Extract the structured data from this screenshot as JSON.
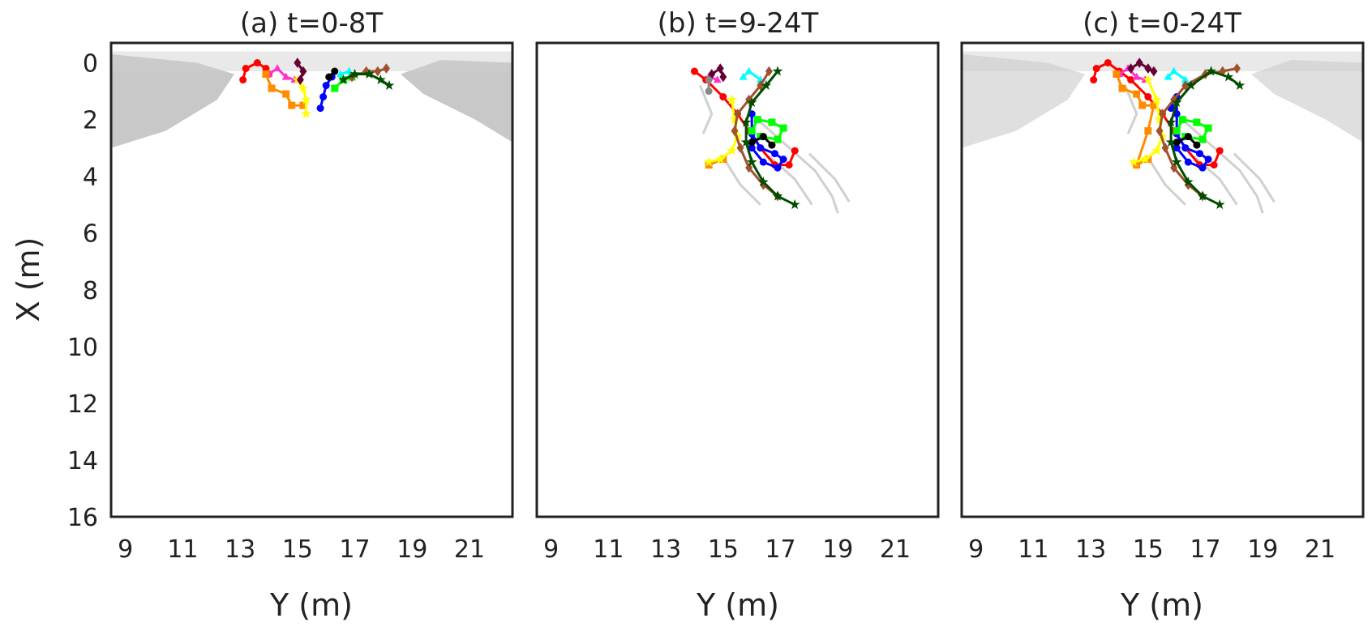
{
  "chart_data": [
    {
      "type": "scatter",
      "title": "(a) t=0-8T",
      "xlabel": "Y (m)",
      "ylabel": "X (m)",
      "xlim": [
        8.5,
        22.5
      ],
      "ylim": [
        16,
        -0.7
      ],
      "y_inverted": true,
      "xticks": [
        "9",
        "11",
        "13",
        "15",
        "17",
        "19",
        "21"
      ],
      "yticks": [
        "0",
        "2",
        "4",
        "6",
        "8",
        "10",
        "12",
        "14",
        "16"
      ],
      "background": "grey density of all trajectories, concentrated near X 0-3 at Y 8.5-12 and Y 19-22.5",
      "series": [
        {
          "color": "#ff0000",
          "marker": "circle",
          "points": [
            [
              13.1,
              0.6
            ],
            [
              13.2,
              0.2
            ],
            [
              13.6,
              0.0
            ],
            [
              13.9,
              0.2
            ],
            [
              14.0,
              0.4
            ]
          ]
        },
        {
          "color": "#ff33cc",
          "marker": "triangle",
          "points": [
            [
              14.0,
              0.4
            ],
            [
              14.3,
              0.2
            ],
            [
              14.6,
              0.5
            ],
            [
              14.9,
              0.6
            ]
          ]
        },
        {
          "color": "#ff8c00",
          "marker": "square",
          "points": [
            [
              13.9,
              0.4
            ],
            [
              14.1,
              0.9
            ],
            [
              14.6,
              1.1
            ],
            [
              14.8,
              1.5
            ],
            [
              15.2,
              1.5
            ]
          ]
        },
        {
          "color": "#ffff00",
          "marker": "star",
          "points": [
            [
              15.0,
              0.6
            ],
            [
              15.2,
              0.9
            ],
            [
              15.3,
              1.3
            ],
            [
              15.3,
              1.8
            ]
          ]
        },
        {
          "color": "#660033",
          "marker": "diamond",
          "points": [
            [
              15.0,
              0.0
            ],
            [
              15.2,
              0.3
            ],
            [
              15.1,
              0.6
            ]
          ]
        },
        {
          "color": "#0000ff",
          "marker": "circle",
          "points": [
            [
              15.8,
              1.6
            ],
            [
              15.9,
              1.2
            ],
            [
              16.0,
              0.8
            ],
            [
              16.2,
              0.5
            ]
          ]
        },
        {
          "color": "#00ff00",
          "marker": "square",
          "points": [
            [
              16.3,
              0.9
            ],
            [
              16.6,
              0.6
            ],
            [
              16.9,
              0.5
            ]
          ]
        },
        {
          "color": "#00ffff",
          "marker": "triangle",
          "points": [
            [
              16.5,
              0.4
            ],
            [
              16.8,
              0.3
            ]
          ]
        },
        {
          "color": "#000000",
          "marker": "circle",
          "points": [
            [
              16.1,
              0.5
            ],
            [
              16.3,
              0.3
            ]
          ]
        },
        {
          "color": "#a0522d",
          "marker": "diamond",
          "points": [
            [
              16.9,
              0.5
            ],
            [
              17.4,
              0.3
            ],
            [
              17.8,
              0.3
            ],
            [
              18.1,
              0.2
            ]
          ]
        },
        {
          "color": "#004d00",
          "marker": "star",
          "points": [
            [
              16.6,
              0.6
            ],
            [
              17.0,
              0.4
            ],
            [
              17.5,
              0.4
            ],
            [
              17.9,
              0.6
            ],
            [
              18.2,
              0.8
            ]
          ]
        }
      ]
    },
    {
      "type": "scatter",
      "title": "(b) t=9-24T",
      "xlabel": "Y (m)",
      "ylabel": "",
      "xlim": [
        8.5,
        22.5
      ],
      "ylim": [
        16,
        -0.7
      ],
      "y_inverted": true,
      "xticks": [
        "9",
        "11",
        "13",
        "15",
        "17",
        "19",
        "21"
      ],
      "yticks": [],
      "background": "light grey trajectory traces around X 0.5-5.5, Y 14-19",
      "series": [
        {
          "color": "#ff0000",
          "marker": "circle",
          "points": [
            [
              14.0,
              0.3
            ],
            [
              14.4,
              0.6
            ],
            [
              15.0,
              1.2
            ],
            [
              15.5,
              1.8
            ],
            [
              15.9,
              2.4
            ],
            [
              16.3,
              3.0
            ],
            [
              16.8,
              3.6
            ],
            [
              17.3,
              3.6
            ],
            [
              17.5,
              3.1
            ]
          ]
        },
        {
          "color": "#ff33cc",
          "marker": "triangle",
          "points": [
            [
              14.5,
              0.5
            ],
            [
              14.8,
              0.6
            ]
          ]
        },
        {
          "color": "#ff8c00",
          "marker": "square",
          "points": [
            [
              14.5,
              3.6
            ],
            [
              15.0,
              3.4
            ]
          ]
        },
        {
          "color": "#ffff00",
          "marker": "star",
          "points": [
            [
              15.3,
              1.3
            ],
            [
              15.4,
              2.0
            ],
            [
              15.5,
              2.6
            ],
            [
              15.3,
              3.1
            ],
            [
              14.9,
              3.4
            ],
            [
              14.5,
              3.5
            ]
          ]
        },
        {
          "color": "#660033",
          "marker": "diamond",
          "points": [
            [
              14.6,
              0.4
            ],
            [
              14.9,
              0.2
            ],
            [
              15.0,
              0.5
            ]
          ]
        },
        {
          "color": "#0000ff",
          "marker": "circle",
          "points": [
            [
              16.0,
              1.8
            ],
            [
              16.0,
              2.5
            ],
            [
              16.3,
              3.0
            ],
            [
              16.8,
              3.2
            ],
            [
              17.1,
              3.4
            ],
            [
              16.9,
              3.7
            ],
            [
              16.4,
              3.5
            ],
            [
              16.0,
              3.0
            ],
            [
              16.0,
              2.4
            ]
          ]
        },
        {
          "color": "#00ff00",
          "marker": "square",
          "points": [
            [
              16.0,
              2.4
            ],
            [
              16.2,
              2.0
            ],
            [
              16.7,
              2.1
            ],
            [
              17.1,
              2.3
            ],
            [
              16.9,
              2.7
            ],
            [
              16.3,
              2.6
            ]
          ]
        },
        {
          "color": "#00ffff",
          "marker": "triangle",
          "points": [
            [
              15.7,
              0.5
            ],
            [
              15.9,
              0.3
            ],
            [
              16.3,
              0.6
            ]
          ]
        },
        {
          "color": "#000000",
          "marker": "circle",
          "points": [
            [
              16.0,
              2.8
            ],
            [
              16.4,
              2.6
            ],
            [
              16.7,
              2.9
            ]
          ]
        },
        {
          "color": "#a0522d",
          "marker": "diamond",
          "points": [
            [
              16.6,
              0.3
            ],
            [
              16.3,
              0.8
            ],
            [
              15.9,
              1.3
            ],
            [
              15.5,
              1.8
            ],
            [
              15.4,
              2.4
            ],
            [
              15.6,
              3.0
            ],
            [
              15.9,
              3.7
            ],
            [
              16.4,
              4.3
            ],
            [
              16.9,
              4.7
            ]
          ]
        },
        {
          "color": "#004d00",
          "marker": "star",
          "points": [
            [
              16.9,
              0.3
            ],
            [
              16.5,
              0.8
            ],
            [
              16.0,
              1.4
            ],
            [
              15.8,
              2.1
            ],
            [
              15.8,
              2.8
            ],
            [
              16.0,
              3.5
            ],
            [
              16.4,
              4.2
            ],
            [
              16.9,
              4.7
            ],
            [
              17.5,
              5.0
            ]
          ]
        },
        {
          "color": "#888888",
          "marker": "circle",
          "points": [
            [
              14.5,
              0.6
            ],
            [
              14.5,
              1.0
            ]
          ]
        }
      ]
    },
    {
      "type": "scatter",
      "title": "(c) t=0-24T",
      "xlabel": "Y (m)",
      "ylabel": "",
      "xlim": [
        8.5,
        22.5
      ],
      "ylim": [
        16,
        -0.7
      ],
      "y_inverted": true,
      "xticks": [
        "9",
        "11",
        "13",
        "15",
        "17",
        "19",
        "21"
      ],
      "yticks": [],
      "background": "grey density of all trajectories plus light traces, combined t=0-24T",
      "series": [
        {
          "color": "#ff0000",
          "marker": "circle",
          "points": [
            [
              13.1,
              0.6
            ],
            [
              13.2,
              0.2
            ],
            [
              13.6,
              0.0
            ],
            [
              14.0,
              0.3
            ],
            [
              14.4,
              0.6
            ],
            [
              15.0,
              1.2
            ],
            [
              15.5,
              1.8
            ],
            [
              15.9,
              2.4
            ],
            [
              16.3,
              3.0
            ],
            [
              16.8,
              3.6
            ],
            [
              17.3,
              3.6
            ],
            [
              17.5,
              3.1
            ]
          ]
        },
        {
          "color": "#ff33cc",
          "marker": "triangle",
          "points": [
            [
              14.0,
              0.4
            ],
            [
              14.3,
              0.2
            ],
            [
              14.6,
              0.5
            ],
            [
              14.9,
              0.6
            ]
          ]
        },
        {
          "color": "#ff8c00",
          "marker": "square",
          "points": [
            [
              13.9,
              0.4
            ],
            [
              14.1,
              0.9
            ],
            [
              14.6,
              1.1
            ],
            [
              14.8,
              1.5
            ],
            [
              15.2,
              1.5
            ],
            [
              15.0,
              2.4
            ],
            [
              14.6,
              3.6
            ],
            [
              15.0,
              3.4
            ]
          ]
        },
        {
          "color": "#ffff00",
          "marker": "star",
          "points": [
            [
              15.0,
              0.6
            ],
            [
              15.3,
              1.3
            ],
            [
              15.4,
              2.0
            ],
            [
              15.5,
              2.6
            ],
            [
              15.3,
              3.1
            ],
            [
              14.9,
              3.4
            ],
            [
              14.5,
              3.5
            ]
          ]
        },
        {
          "color": "#660033",
          "marker": "diamond",
          "points": [
            [
              14.4,
              0.2
            ],
            [
              14.7,
              0.0
            ],
            [
              15.0,
              0.2
            ],
            [
              15.2,
              0.3
            ]
          ]
        },
        {
          "color": "#0000ff",
          "marker": "circle",
          "points": [
            [
              15.8,
              1.6
            ],
            [
              16.0,
              1.2
            ],
            [
              16.0,
              1.8
            ],
            [
              16.0,
              2.5
            ],
            [
              16.3,
              3.0
            ],
            [
              16.8,
              3.2
            ],
            [
              17.1,
              3.4
            ],
            [
              16.9,
              3.7
            ],
            [
              16.4,
              3.5
            ],
            [
              16.0,
              3.0
            ]
          ]
        },
        {
          "color": "#00ff00",
          "marker": "square",
          "points": [
            [
              16.0,
              2.4
            ],
            [
              16.2,
              2.0
            ],
            [
              16.7,
              2.1
            ],
            [
              17.1,
              2.3
            ],
            [
              16.9,
              2.7
            ],
            [
              16.3,
              2.6
            ]
          ]
        },
        {
          "color": "#00ffff",
          "marker": "triangle",
          "points": [
            [
              15.7,
              0.5
            ],
            [
              15.9,
              0.3
            ],
            [
              16.3,
              0.6
            ]
          ]
        },
        {
          "color": "#000000",
          "marker": "circle",
          "points": [
            [
              16.0,
              2.8
            ],
            [
              16.4,
              2.6
            ],
            [
              16.7,
              2.9
            ]
          ]
        },
        {
          "color": "#a0522d",
          "marker": "diamond",
          "points": [
            [
              18.1,
              0.2
            ],
            [
              17.6,
              0.3
            ],
            [
              17.0,
              0.4
            ],
            [
              16.3,
              0.8
            ],
            [
              15.9,
              1.3
            ],
            [
              15.5,
              1.8
            ],
            [
              15.4,
              2.4
            ],
            [
              15.6,
              3.0
            ],
            [
              15.9,
              3.7
            ],
            [
              16.4,
              4.3
            ],
            [
              16.9,
              4.7
            ]
          ]
        },
        {
          "color": "#004d00",
          "marker": "star",
          "points": [
            [
              18.2,
              0.8
            ],
            [
              17.8,
              0.5
            ],
            [
              17.2,
              0.3
            ],
            [
              16.5,
              0.8
            ],
            [
              16.0,
              1.4
            ],
            [
              15.8,
              2.1
            ],
            [
              15.8,
              2.8
            ],
            [
              16.0,
              3.5
            ],
            [
              16.4,
              4.2
            ],
            [
              16.9,
              4.7
            ],
            [
              17.5,
              5.0
            ]
          ]
        }
      ]
    }
  ]
}
